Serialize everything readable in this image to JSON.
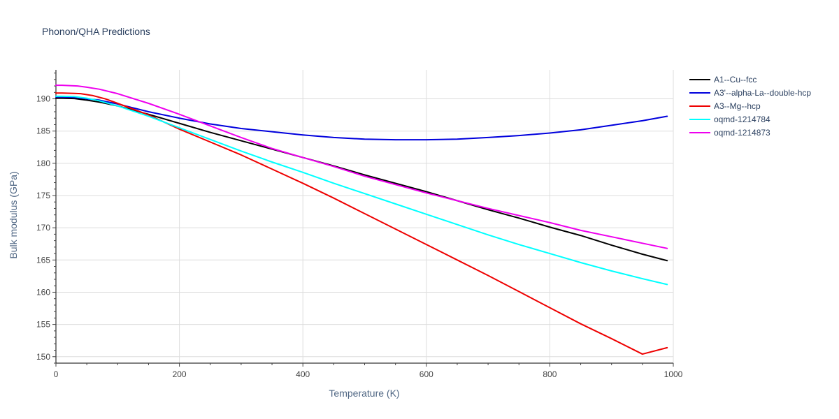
{
  "chart_data": {
    "type": "line",
    "title": "Phonon/QHA Predictions",
    "xlabel": "Temperature (K)",
    "ylabel": "Bulk modulus (GPa)",
    "xlim": [
      0,
      1000
    ],
    "ylim": [
      149,
      194.5
    ],
    "xticks": [
      0,
      200,
      400,
      600,
      800,
      1000
    ],
    "yticks": [
      150,
      155,
      160,
      165,
      170,
      175,
      180,
      185,
      190
    ],
    "grid": true,
    "legend_position": "right",
    "series": [
      {
        "name": "A1--Cu--fcc",
        "color": "#000000",
        "x": [
          0,
          10,
          30,
          50,
          70,
          100,
          150,
          200,
          250,
          300,
          350,
          400,
          450,
          500,
          550,
          600,
          650,
          700,
          750,
          800,
          850,
          900,
          950,
          990
        ],
        "y": [
          190.1,
          190.1,
          190.05,
          189.8,
          189.5,
          188.9,
          187.6,
          186.2,
          184.8,
          183.5,
          182.2,
          180.9,
          179.6,
          178.2,
          176.9,
          175.6,
          174.2,
          172.8,
          171.5,
          170.1,
          168.8,
          167.3,
          165.9,
          164.9
        ]
      },
      {
        "name": "A3'--alpha-La--double-hcp",
        "color": "#0000dd",
        "x": [
          0,
          10,
          30,
          50,
          70,
          100,
          150,
          200,
          250,
          300,
          350,
          400,
          450,
          500,
          550,
          600,
          650,
          700,
          750,
          800,
          850,
          900,
          950,
          990
        ],
        "y": [
          190.3,
          190.3,
          190.25,
          190.0,
          189.8,
          189.2,
          188.0,
          187.0,
          186.1,
          185.4,
          184.9,
          184.4,
          184.0,
          183.75,
          183.65,
          183.65,
          183.75,
          184.0,
          184.3,
          184.7,
          185.2,
          185.9,
          186.6,
          187.3
        ]
      },
      {
        "name": "A3--Mg--hcp",
        "color": "#ee0000",
        "x": [
          0,
          10,
          30,
          40,
          60,
          80,
          100,
          150,
          200,
          250,
          300,
          350,
          400,
          450,
          500,
          550,
          600,
          650,
          700,
          750,
          800,
          850,
          900,
          950,
          990
        ],
        "y": [
          190.9,
          190.9,
          190.85,
          190.8,
          190.5,
          190.0,
          189.3,
          187.5,
          185.3,
          183.3,
          181.3,
          179.1,
          176.9,
          174.6,
          172.2,
          169.8,
          167.4,
          165.0,
          162.6,
          160.1,
          157.6,
          155.1,
          152.8,
          150.4,
          151.4
        ]
      },
      {
        "name": "oqmd-1214784",
        "color": "#00ffff",
        "x": [
          0,
          10,
          30,
          50,
          70,
          100,
          150,
          200,
          250,
          300,
          350,
          400,
          450,
          500,
          550,
          600,
          650,
          700,
          750,
          800,
          850,
          900,
          950,
          990
        ],
        "y": [
          190.4,
          190.4,
          190.35,
          190.1,
          189.7,
          188.9,
          187.3,
          185.5,
          183.7,
          181.9,
          180.2,
          178.6,
          176.9,
          175.3,
          173.7,
          172.1,
          170.5,
          168.9,
          167.4,
          166.0,
          164.6,
          163.3,
          162.1,
          161.2
        ]
      },
      {
        "name": "oqmd-1214873",
        "color": "#ee00ee",
        "x": [
          0,
          10,
          35,
          50,
          70,
          100,
          150,
          200,
          250,
          300,
          350,
          400,
          450,
          500,
          550,
          600,
          650,
          700,
          750,
          800,
          850,
          900,
          950,
          990
        ],
        "y": [
          192.1,
          192.1,
          192.0,
          191.8,
          191.5,
          190.8,
          189.3,
          187.6,
          185.8,
          184.0,
          182.3,
          180.9,
          179.5,
          178.0,
          176.7,
          175.4,
          174.2,
          173.0,
          171.9,
          170.8,
          169.6,
          168.6,
          167.6,
          166.8
        ]
      }
    ]
  }
}
